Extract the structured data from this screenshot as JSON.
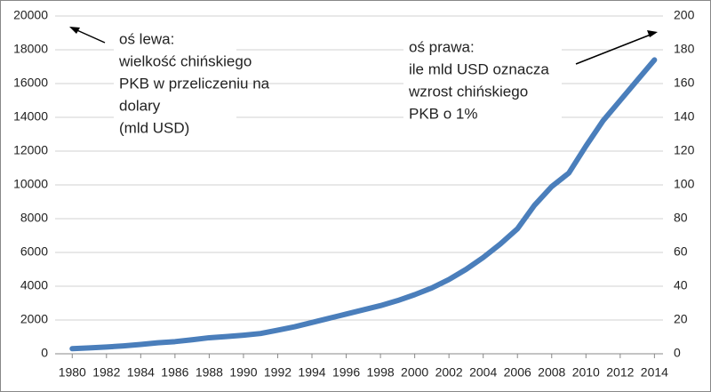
{
  "chart_data": {
    "type": "line",
    "x": [
      1980,
      1981,
      1982,
      1983,
      1984,
      1985,
      1986,
      1987,
      1988,
      1989,
      1990,
      1991,
      1992,
      1993,
      1994,
      1995,
      1996,
      1997,
      1998,
      1999,
      2000,
      2001,
      2002,
      2003,
      2004,
      2005,
      2006,
      2007,
      2008,
      2009,
      2010,
      2011,
      2012,
      2013,
      2014
    ],
    "series": [
      {
        "color": "#4a7ebb",
        "values": [
          300,
          350,
          400,
          470,
          550,
          650,
          720,
          830,
          950,
          1020,
          1100,
          1200,
          1400,
          1600,
          1850,
          2100,
          2350,
          2600,
          2850,
          3150,
          3500,
          3900,
          4400,
          5000,
          5700,
          6500,
          7400,
          8800,
          9900,
          10700,
          12300,
          13800,
          15000,
          16200,
          17400
        ]
      }
    ],
    "xlim": [
      1979,
      2014.5
    ],
    "xticks": [
      1980,
      1982,
      1984,
      1986,
      1988,
      1990,
      1992,
      1994,
      1996,
      1998,
      2000,
      2002,
      2004,
      2006,
      2008,
      2010,
      2012,
      2014
    ],
    "ylim": [
      0,
      20000
    ],
    "yticks": [
      0,
      2000,
      4000,
      6000,
      8000,
      10000,
      12000,
      14000,
      16000,
      18000,
      20000
    ],
    "y2lim": [
      0,
      200
    ],
    "y2ticks": [
      0,
      20,
      40,
      60,
      80,
      100,
      120,
      140,
      160,
      180,
      200
    ],
    "grid": true,
    "annotations": [
      [
        "oś lewa:",
        "wielkość chińskiego",
        "PKB w przeliczeniu na",
        "dolary",
        "(mld USD)"
      ],
      [
        "oś prawa:",
        "ile mld USD oznacza",
        "wzrost chińskiego",
        "PKB o 1%"
      ]
    ]
  }
}
